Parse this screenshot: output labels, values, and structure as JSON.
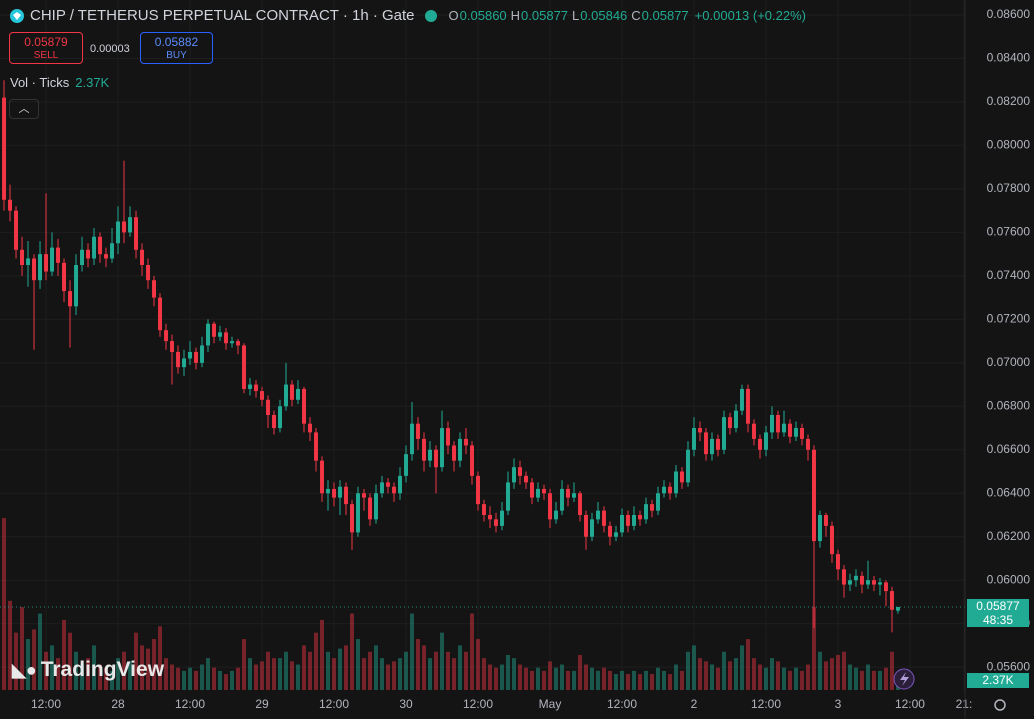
{
  "header": {
    "title": "CHIP / TETHERUS PERPETUAL CONTRACT · 1h · Gate",
    "o_label": "O",
    "open": "0.05860",
    "h_label": "H",
    "high": "0.05877",
    "l_label": "L",
    "low": "0.05846",
    "c_label": "C",
    "close": "0.05877",
    "change": "+0.00013 (+0.22%)",
    "sell_price": "0.05879",
    "sell": "SELL",
    "spread": "0.00003",
    "buy_price": "0.05882",
    "buy": "BUY",
    "vol_label": "Vol · Ticks",
    "vol_value": "2.37K",
    "countdown": "48:35",
    "brand": "TradingView"
  },
  "chart_data": {
    "type": "candlestick",
    "title": "CHIP / TETHERUS PERPETUAL CONTRACT · 1h · Gate",
    "up_color": "#22ab94",
    "down_color": "#f23645",
    "grid": true,
    "candles": [
      [
        0.0822,
        0.083,
        0.077,
        0.0775
      ],
      [
        0.0775,
        0.0782,
        0.0765,
        0.077
      ],
      [
        0.077,
        0.0772,
        0.0748,
        0.0752
      ],
      [
        0.0752,
        0.0758,
        0.074,
        0.0745
      ],
      [
        0.0745,
        0.0756,
        0.0735,
        0.0748
      ],
      [
        0.0748,
        0.075,
        0.0706,
        0.0738
      ],
      [
        0.0738,
        0.0756,
        0.0734,
        0.075
      ],
      [
        0.075,
        0.0778,
        0.0738,
        0.0742
      ],
      [
        0.0742,
        0.076,
        0.074,
        0.0753
      ],
      [
        0.0753,
        0.0757,
        0.074,
        0.0746
      ],
      [
        0.0746,
        0.0748,
        0.0728,
        0.0733
      ],
      [
        0.0733,
        0.0738,
        0.0707,
        0.0726
      ],
      [
        0.0726,
        0.075,
        0.0722,
        0.0745
      ],
      [
        0.0745,
        0.0758,
        0.0742,
        0.0752
      ],
      [
        0.0752,
        0.0755,
        0.0744,
        0.0748
      ],
      [
        0.0748,
        0.0762,
        0.0745,
        0.0758
      ],
      [
        0.0758,
        0.076,
        0.0746,
        0.075
      ],
      [
        0.075,
        0.0753,
        0.0744,
        0.0748
      ],
      [
        0.0748,
        0.0762,
        0.0746,
        0.0755
      ],
      [
        0.0755,
        0.0772,
        0.075,
        0.0765
      ],
      [
        0.0765,
        0.0793,
        0.0755,
        0.076
      ],
      [
        0.076,
        0.0772,
        0.0758,
        0.0767
      ],
      [
        0.0767,
        0.077,
        0.0748,
        0.0752
      ],
      [
        0.0752,
        0.0755,
        0.074,
        0.0745
      ],
      [
        0.0745,
        0.0748,
        0.0734,
        0.0738
      ],
      [
        0.0738,
        0.074,
        0.0726,
        0.073
      ],
      [
        0.073,
        0.0732,
        0.0712,
        0.0715
      ],
      [
        0.0715,
        0.0718,
        0.0706,
        0.071
      ],
      [
        0.071,
        0.0713,
        0.069,
        0.0705
      ],
      [
        0.0705,
        0.0708,
        0.0695,
        0.0698
      ],
      [
        0.0698,
        0.0706,
        0.0694,
        0.0702
      ],
      [
        0.0702,
        0.071,
        0.0699,
        0.0705
      ],
      [
        0.0705,
        0.0707,
        0.0697,
        0.07
      ],
      [
        0.07,
        0.0712,
        0.0698,
        0.0708
      ],
      [
        0.0708,
        0.072,
        0.0705,
        0.0718
      ],
      [
        0.0718,
        0.0719,
        0.0709,
        0.0712
      ],
      [
        0.0712,
        0.0717,
        0.071,
        0.0714
      ],
      [
        0.0714,
        0.0716,
        0.0706,
        0.0709
      ],
      [
        0.0709,
        0.0712,
        0.0707,
        0.071
      ],
      [
        0.071,
        0.0711,
        0.0704,
        0.0708
      ],
      [
        0.0708,
        0.0709,
        0.0686,
        0.0688
      ],
      [
        0.0688,
        0.0693,
        0.0685,
        0.069
      ],
      [
        0.069,
        0.0692,
        0.0684,
        0.0687
      ],
      [
        0.0687,
        0.0689,
        0.068,
        0.0683
      ],
      [
        0.0683,
        0.0685,
        0.067,
        0.0676
      ],
      [
        0.0676,
        0.0678,
        0.0667,
        0.067
      ],
      [
        0.067,
        0.0683,
        0.0668,
        0.068
      ],
      [
        0.068,
        0.07,
        0.0678,
        0.069
      ],
      [
        0.069,
        0.0692,
        0.068,
        0.0683
      ],
      [
        0.0683,
        0.0692,
        0.0681,
        0.0688
      ],
      [
        0.0688,
        0.0689,
        0.0668,
        0.0672
      ],
      [
        0.0672,
        0.0675,
        0.0664,
        0.0668
      ],
      [
        0.0668,
        0.067,
        0.065,
        0.0655
      ],
      [
        0.0655,
        0.0657,
        0.0636,
        0.064
      ],
      [
        0.064,
        0.0646,
        0.0632,
        0.0642
      ],
      [
        0.0642,
        0.0645,
        0.0634,
        0.0638
      ],
      [
        0.0638,
        0.0646,
        0.063,
        0.0643
      ],
      [
        0.0643,
        0.0645,
        0.063,
        0.0635
      ],
      [
        0.0635,
        0.0637,
        0.0614,
        0.0622
      ],
      [
        0.0622,
        0.0643,
        0.062,
        0.064
      ],
      [
        0.064,
        0.0642,
        0.0632,
        0.0638
      ],
      [
        0.0638,
        0.064,
        0.0625,
        0.0628
      ],
      [
        0.0628,
        0.0644,
        0.0626,
        0.064
      ],
      [
        0.064,
        0.0648,
        0.0638,
        0.0645
      ],
      [
        0.0645,
        0.0647,
        0.064,
        0.0643
      ],
      [
        0.0643,
        0.0645,
        0.0636,
        0.064
      ],
      [
        0.064,
        0.0652,
        0.0637,
        0.0648
      ],
      [
        0.0648,
        0.0662,
        0.0645,
        0.0658
      ],
      [
        0.0658,
        0.0682,
        0.0655,
        0.0672
      ],
      [
        0.0672,
        0.0675,
        0.066,
        0.0665
      ],
      [
        0.0665,
        0.0668,
        0.065,
        0.0655
      ],
      [
        0.0655,
        0.0664,
        0.0652,
        0.066
      ],
      [
        0.066,
        0.0662,
        0.064,
        0.0652
      ],
      [
        0.0652,
        0.0678,
        0.065,
        0.067
      ],
      [
        0.067,
        0.0673,
        0.0658,
        0.0662
      ],
      [
        0.0662,
        0.0664,
        0.065,
        0.0655
      ],
      [
        0.0655,
        0.0668,
        0.0652,
        0.0665
      ],
      [
        0.0665,
        0.067,
        0.0658,
        0.0662
      ],
      [
        0.0662,
        0.0664,
        0.0644,
        0.0648
      ],
      [
        0.0648,
        0.065,
        0.0632,
        0.0635
      ],
      [
        0.0635,
        0.0637,
        0.0627,
        0.063
      ],
      [
        0.063,
        0.0634,
        0.0624,
        0.0628
      ],
      [
        0.0628,
        0.0631,
        0.0622,
        0.0625
      ],
      [
        0.0625,
        0.0636,
        0.0623,
        0.0632
      ],
      [
        0.0632,
        0.065,
        0.063,
        0.0645
      ],
      [
        0.0645,
        0.0656,
        0.0642,
        0.0652
      ],
      [
        0.0652,
        0.0655,
        0.0644,
        0.0648
      ],
      [
        0.0648,
        0.065,
        0.0642,
        0.0645
      ],
      [
        0.0645,
        0.0647,
        0.0635,
        0.0638
      ],
      [
        0.0638,
        0.0645,
        0.0636,
        0.0642
      ],
      [
        0.0642,
        0.0644,
        0.0637,
        0.064
      ],
      [
        0.064,
        0.0642,
        0.0624,
        0.0628
      ],
      [
        0.0628,
        0.0636,
        0.0626,
        0.0632
      ],
      [
        0.0632,
        0.0646,
        0.063,
        0.0642
      ],
      [
        0.0642,
        0.0644,
        0.0634,
        0.0638
      ],
      [
        0.0638,
        0.0645,
        0.0636,
        0.064
      ],
      [
        0.064,
        0.0641,
        0.0627,
        0.063
      ],
      [
        0.063,
        0.0632,
        0.0614,
        0.062
      ],
      [
        0.062,
        0.0631,
        0.0618,
        0.0628
      ],
      [
        0.0628,
        0.0636,
        0.0626,
        0.0632
      ],
      [
        0.0632,
        0.0634,
        0.0622,
        0.0625
      ],
      [
        0.0625,
        0.0627,
        0.0616,
        0.062
      ],
      [
        0.062,
        0.0625,
        0.0618,
        0.0622
      ],
      [
        0.0622,
        0.0633,
        0.062,
        0.063
      ],
      [
        0.063,
        0.0632,
        0.0622,
        0.0625
      ],
      [
        0.0625,
        0.0634,
        0.0623,
        0.063
      ],
      [
        0.063,
        0.0632,
        0.0625,
        0.0628
      ],
      [
        0.0628,
        0.0638,
        0.0626,
        0.0635
      ],
      [
        0.0635,
        0.0637,
        0.0629,
        0.0632
      ],
      [
        0.0632,
        0.0643,
        0.063,
        0.064
      ],
      [
        0.064,
        0.0646,
        0.0638,
        0.0643
      ],
      [
        0.0643,
        0.0645,
        0.0637,
        0.064
      ],
      [
        0.064,
        0.0653,
        0.0638,
        0.065
      ],
      [
        0.065,
        0.0652,
        0.0642,
        0.0645
      ],
      [
        0.0645,
        0.0664,
        0.0643,
        0.066
      ],
      [
        0.066,
        0.0675,
        0.0657,
        0.067
      ],
      [
        0.067,
        0.0673,
        0.0664,
        0.0668
      ],
      [
        0.0668,
        0.067,
        0.0655,
        0.0658
      ],
      [
        0.0658,
        0.0668,
        0.0655,
        0.0665
      ],
      [
        0.0665,
        0.0667,
        0.0657,
        0.066
      ],
      [
        0.066,
        0.0678,
        0.0658,
        0.0675
      ],
      [
        0.0675,
        0.0677,
        0.0667,
        0.067
      ],
      [
        0.067,
        0.0681,
        0.0668,
        0.0678
      ],
      [
        0.0678,
        0.069,
        0.0676,
        0.0688
      ],
      [
        0.0688,
        0.069,
        0.0668,
        0.0672
      ],
      [
        0.0672,
        0.0674,
        0.0662,
        0.0665
      ],
      [
        0.0665,
        0.0667,
        0.0656,
        0.066
      ],
      [
        0.066,
        0.0671,
        0.0657,
        0.0668
      ],
      [
        0.0668,
        0.068,
        0.0665,
        0.0676
      ],
      [
        0.0676,
        0.0678,
        0.0665,
        0.0668
      ],
      [
        0.0668,
        0.0678,
        0.0666,
        0.0672
      ],
      [
        0.0672,
        0.0674,
        0.0663,
        0.0666
      ],
      [
        0.0666,
        0.0673,
        0.0664,
        0.067
      ],
      [
        0.067,
        0.0672,
        0.0662,
        0.0665
      ],
      [
        0.0665,
        0.0667,
        0.0655,
        0.066
      ],
      [
        0.066,
        0.0662,
        0.0578,
        0.0618
      ],
      [
        0.0618,
        0.0632,
        0.0615,
        0.063
      ],
      [
        0.063,
        0.0631,
        0.062,
        0.0625
      ],
      [
        0.0625,
        0.0627,
        0.0608,
        0.0612
      ],
      [
        0.0612,
        0.0614,
        0.06,
        0.0605
      ],
      [
        0.0605,
        0.0607,
        0.0592,
        0.0598
      ],
      [
        0.0598,
        0.0603,
        0.0595,
        0.06
      ],
      [
        0.06,
        0.0605,
        0.0597,
        0.0602
      ],
      [
        0.0602,
        0.0604,
        0.0594,
        0.0598
      ],
      [
        0.0598,
        0.0609,
        0.0596,
        0.06
      ],
      [
        0.06,
        0.0602,
        0.0595,
        0.0598
      ],
      [
        0.0598,
        0.0601,
        0.0593,
        0.0599
      ],
      [
        0.0599,
        0.06,
        0.0588,
        0.0595
      ],
      [
        0.0595,
        0.0597,
        0.0576,
        0.05864
      ],
      [
        0.0586,
        0.05877,
        0.05846,
        0.05877
      ]
    ],
    "volume": [
      27000,
      14000,
      9000,
      13000,
      8000,
      9500,
      12000,
      6000,
      7000,
      5000,
      11000,
      9000,
      6000,
      4000,
      5000,
      7000,
      4000,
      3500,
      3000,
      5000,
      6000,
      4500,
      9000,
      7000,
      6500,
      8000,
      10000,
      5000,
      4000,
      3500,
      3000,
      3500,
      3000,
      4000,
      5000,
      3500,
      3000,
      2500,
      3000,
      3500,
      8000,
      5000,
      4000,
      4500,
      6000,
      5000,
      5000,
      6000,
      4500,
      4000,
      7000,
      6000,
      9000,
      11000,
      6000,
      5000,
      6500,
      7000,
      12000,
      8000,
      5000,
      6000,
      7000,
      5000,
      4000,
      4500,
      5000,
      6000,
      12000,
      8000,
      7000,
      5000,
      6000,
      9000,
      6000,
      5000,
      7000,
      6000,
      12000,
      8000,
      5000,
      4000,
      3500,
      4000,
      5500,
      5000,
      4000,
      3500,
      3000,
      3500,
      3000,
      4500,
      3500,
      4000,
      3000,
      3000,
      5500,
      4000,
      3500,
      3000,
      3500,
      3000,
      2500,
      3000,
      2500,
      3000,
      2500,
      3000,
      2500,
      3500,
      3000,
      2500,
      4000,
      3000,
      6000,
      7000,
      5000,
      4500,
      4000,
      3500,
      6000,
      4500,
      5000,
      7000,
      8000,
      5000,
      4000,
      3500,
      5000,
      4500,
      3500,
      3000,
      3500,
      3000,
      4000,
      13000,
      6000,
      4500,
      5000,
      5500,
      6000,
      4000,
      3500,
      3000,
      4000,
      3000,
      3000,
      3500,
      6000,
      2370
    ],
    "ylim": [
      0.05495,
      0.08669
    ],
    "yticks": [
      {
        "value": 0.086,
        "label": "0.08600"
      },
      {
        "value": 0.084,
        "label": "0.08400"
      },
      {
        "value": 0.082,
        "label": "0.08200"
      },
      {
        "value": 0.08,
        "label": "0.08000"
      },
      {
        "value": 0.078,
        "label": "0.07800"
      },
      {
        "value": 0.076,
        "label": "0.07600"
      },
      {
        "value": 0.074,
        "label": "0.07400"
      },
      {
        "value": 0.072,
        "label": "0.07200"
      },
      {
        "value": 0.07,
        "label": "0.07000"
      },
      {
        "value": 0.068,
        "label": "0.06800"
      },
      {
        "value": 0.066,
        "label": "0.06600"
      },
      {
        "value": 0.064,
        "label": "0.06400"
      },
      {
        "value": 0.062,
        "label": "0.06200"
      },
      {
        "value": 0.06,
        "label": "0.06000"
      },
      {
        "value": 0.058,
        "label": "0.05800"
      },
      {
        "value": 0.056,
        "label": "0.05600"
      }
    ],
    "xlim": [
      -0.67,
      160.17
    ],
    "xticks": [
      {
        "value": 7,
        "label": "12:00"
      },
      {
        "value": 19,
        "label": "28"
      },
      {
        "value": 31,
        "label": "12:00"
      },
      {
        "value": 43,
        "label": "29"
      },
      {
        "value": 55,
        "label": "12:00"
      },
      {
        "value": 67,
        "label": "30"
      },
      {
        "value": 79,
        "label": "12:00"
      },
      {
        "value": 91,
        "label": "May"
      },
      {
        "value": 103,
        "label": "12:00"
      },
      {
        "value": 115,
        "label": "2"
      },
      {
        "value": 127,
        "label": "12:00"
      },
      {
        "value": 139,
        "label": "3"
      },
      {
        "value": 151,
        "label": "12:00"
      },
      {
        "value": 160,
        "label": "21:"
      }
    ]
  }
}
